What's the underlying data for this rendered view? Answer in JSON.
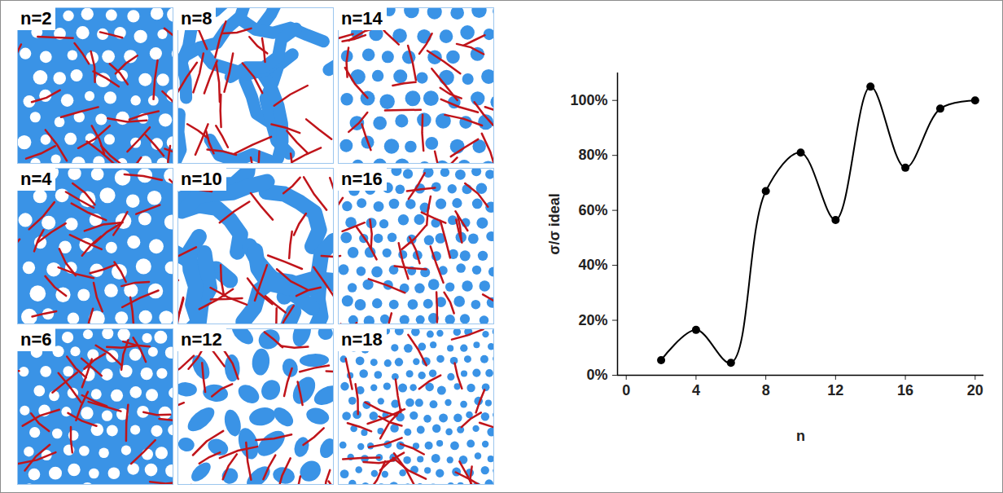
{
  "chart_data": {
    "type": "line",
    "x_label": "n",
    "y_label": "σ/σ ideal",
    "x": [
      2,
      4,
      6,
      8,
      10,
      12,
      14,
      16,
      18,
      20
    ],
    "series": [
      {
        "name": "σ/σ ideal",
        "color": "#000000",
        "marker": "circle",
        "line_style": "solid",
        "values": [
          5.5,
          16.5,
          4.5,
          67,
          81,
          56.5,
          105,
          75.5,
          97,
          100
        ]
      }
    ],
    "xlim": [
      -0.5,
      20.5
    ],
    "xticks": [
      0,
      4,
      8,
      12,
      16,
      20
    ],
    "ylim": [
      0,
      110
    ],
    "yticks": [
      {
        "value": 0,
        "label": "0%"
      },
      {
        "value": 20,
        "label": "20%"
      },
      {
        "value": 40,
        "label": "40%"
      },
      {
        "value": 60,
        "label": "60%"
      },
      {
        "value": 80,
        "label": "80%"
      },
      {
        "value": 100,
        "label": "100%"
      }
    ],
    "grid": false
  },
  "panel_labels": [
    "n=2",
    "n=4",
    "n=6",
    "n=8",
    "n=10",
    "n=12",
    "n=14",
    "n=16",
    "n=18"
  ]
}
